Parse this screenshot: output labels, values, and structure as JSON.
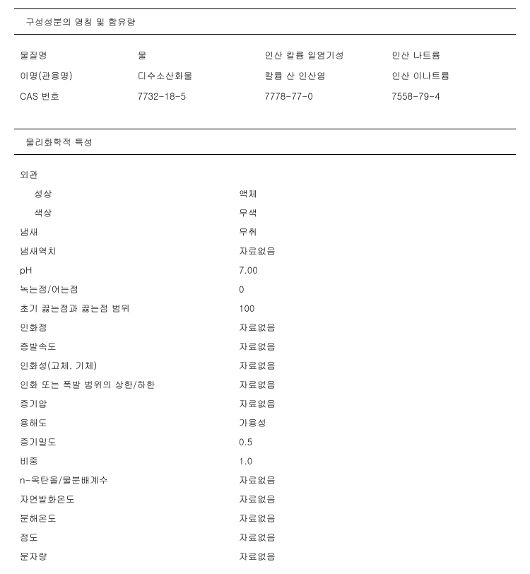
{
  "section1": {
    "title": "구성성분의 명칭 및 함유량",
    "rows": [
      {
        "label": "물질명",
        "c1": "물",
        "c2": "인산 칼륨 일염기성",
        "c3": "인산 나트륨"
      },
      {
        "label": "이명(관용명)",
        "c1": "디수소산화물",
        "c2": "칼륨 산 인산염",
        "c3": "인산 이나트륨"
      },
      {
        "label": "CAS 번호",
        "c1": "7732-18-5",
        "c2": "7778-77-0",
        "c3": "7558-79-4"
      }
    ]
  },
  "section2": {
    "title": "물리화학적 특성",
    "properties": [
      {
        "label": "외관",
        "value": "",
        "indent": 0
      },
      {
        "label": "성상",
        "value": "액체",
        "indent": 1
      },
      {
        "label": "색상",
        "value": "무색",
        "indent": 1
      },
      {
        "label": "냄새",
        "value": "무취",
        "indent": 0
      },
      {
        "label": "냄새역치",
        "value": "자료없음",
        "indent": 0
      },
      {
        "label": "pH",
        "value": "7.00",
        "indent": 0
      },
      {
        "label": "녹는점/어는점",
        "value": "0",
        "indent": 0
      },
      {
        "label": "초기 끓는점과 끓는점 범위",
        "value": "100",
        "indent": 0
      },
      {
        "label": "인화점",
        "value": "자료없음",
        "indent": 0
      },
      {
        "label": "증발속도",
        "value": "자료없음",
        "indent": 0
      },
      {
        "label": "인화성(고체, 기체)",
        "value": "자료없음",
        "indent": 0
      },
      {
        "label": "인화 또는 폭발 범위의 상한/하한",
        "value": "자료없음",
        "indent": 0
      },
      {
        "label": "증기압",
        "value": "자료없음",
        "indent": 0
      },
      {
        "label": "용해도",
        "value": "가용성",
        "indent": 0
      },
      {
        "label": "증기밀도",
        "value": "0.5",
        "indent": 0
      },
      {
        "label": "비중",
        "value": "1.0",
        "indent": 0
      },
      {
        "label": "n-옥탄올/물분배계수",
        "value": "자료없음",
        "indent": 0
      },
      {
        "label": "자연발화온도",
        "value": "자료없음",
        "indent": 0
      },
      {
        "label": "분해온도",
        "value": "자료없음",
        "indent": 0
      },
      {
        "label": "점도",
        "value": "자료없음",
        "indent": 0
      },
      {
        "label": "분자량",
        "value": "자료없음",
        "indent": 0
      }
    ]
  }
}
